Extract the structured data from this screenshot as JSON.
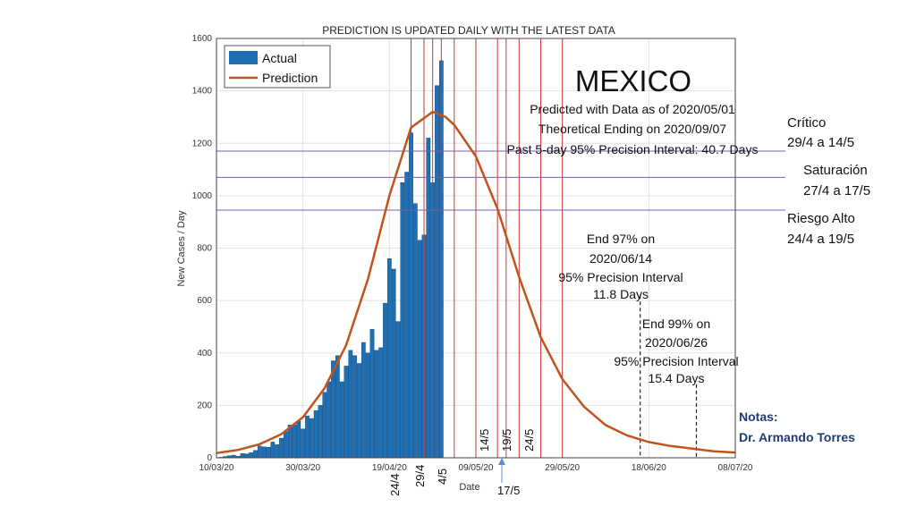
{
  "chart_data": {
    "type": "bar",
    "title": "PREDICTION IS UPDATED DAILY WITH THE LATEST DATA",
    "xlabel": "Date",
    "ylabel": "New Cases / Day",
    "x_start": "10/03/20",
    "ylim": [
      0,
      1600
    ],
    "yticks": [
      0,
      200,
      400,
      600,
      800,
      1000,
      1200,
      1400,
      1600
    ],
    "xtick_labels": [
      "10/03/20",
      "30/03/20",
      "19/04/20",
      "09/05/20",
      "29/05/20",
      "18/06/20",
      "08/07/20"
    ],
    "grid": true,
    "legend": {
      "position": "top-left",
      "entries": [
        "Actual",
        "Prediction"
      ]
    },
    "series": [
      {
        "name": "Actual",
        "type": "bar",
        "color": "#1f6fb5",
        "values": [
          2,
          5,
          8,
          10,
          6,
          16,
          15,
          20,
          28,
          45,
          42,
          40,
          60,
          50,
          75,
          100,
          125,
          125,
          140,
          110,
          160,
          150,
          180,
          200,
          250,
          290,
          370,
          390,
          290,
          350,
          410,
          390,
          360,
          440,
          400,
          490,
          410,
          420,
          590,
          760,
          720,
          520,
          1050,
          1090,
          1240,
          970,
          830,
          850,
          1220,
          1050,
          1420,
          1515
        ]
      },
      {
        "name": "Prediction",
        "type": "line",
        "color": "#c0541d",
        "x": [
          0,
          5,
          10,
          15,
          20,
          25,
          30,
          35,
          40,
          45,
          50,
          53,
          55,
          60,
          65,
          70,
          75,
          80,
          85,
          90,
          95,
          100,
          105,
          110,
          115,
          120
        ],
        "values": [
          18,
          30,
          52,
          90,
          155,
          265,
          430,
          680,
          1000,
          1260,
          1320,
          1300,
          1270,
          1150,
          950,
          690,
          460,
          300,
          195,
          125,
          85,
          60,
          45,
          35,
          25,
          20
        ]
      }
    ],
    "hlines": [
      {
        "y": 1170,
        "color": "#7b5ea7"
      },
      {
        "y": 1070,
        "color": "#7b5ea7"
      },
      {
        "y": 945,
        "color": "#7b5ea7"
      }
    ],
    "vlines_red_x": [
      45,
      48,
      50,
      52,
      55,
      60,
      65,
      67,
      70,
      75,
      80
    ],
    "vlines_dashed": [
      {
        "x": 98,
        "ymax": 620
      },
      {
        "x": 111,
        "ymax": 280
      }
    ],
    "annotations": {
      "country": "MEXICO",
      "predicted_with": "Predicted with Data as of 2020/05/01",
      "theoretical_ending": "Theoretical Ending on 2020/09/07",
      "precision_interval": "Past 5-day 95% Precision Interval: 40.7 Days",
      "end97": [
        "End 97% on",
        "2020/06/14",
        "95% Precision Interval",
        "11.8 Days"
      ],
      "end99": [
        "End 99% on",
        "2020/06/26",
        "95% Precision Interval",
        "15.4 Days"
      ]
    }
  },
  "side_labels": [
    {
      "line1": "Crítico",
      "line2": "29/4 a 14/5"
    },
    {
      "line1": "Saturación",
      "line2": "27/4 a 17/5"
    },
    {
      "line1": "Riesgo Alto",
      "line2": "24/4 a 19/5"
    }
  ],
  "date_markers": [
    "24/4",
    "29/4",
    "4/5",
    "14/5",
    "19/5",
    "24/5"
  ],
  "marker_17_5": "17/5",
  "notes": {
    "line1": "Notas:",
    "line2": "Dr. Armando Torres"
  }
}
